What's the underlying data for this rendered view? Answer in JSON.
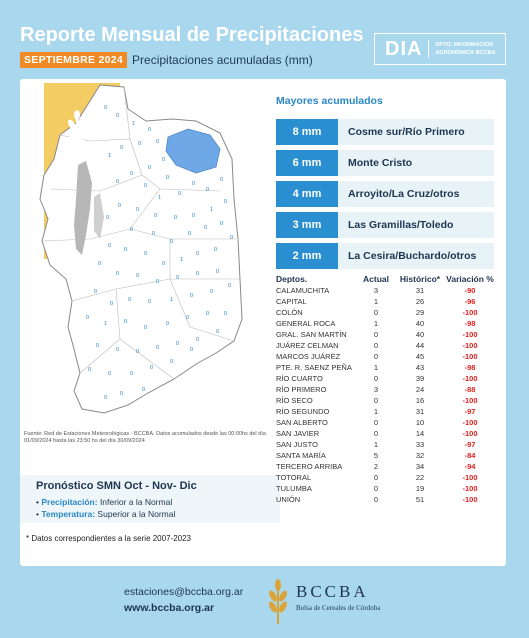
{
  "header": {
    "title": "Reporte Mensual de Precipitaciones",
    "badge": "SEPTIEMBRE 2024",
    "subtitle": "Precipitaciones acumuladas (mm)",
    "dia_word": "DIA",
    "dia_line1": "DPTO. INFORMACIÓN",
    "dia_line2": "AGRONÓMICA BCCBA"
  },
  "map": {
    "source_note": "Fuente: Red de Estaciones Meteorológicas - BCCBA. Datos acumulados desde las 00:00hs del día 01/09/2024 hasta las 23:50 hs del día 30/09/2024",
    "station_labels": [
      "0",
      "0",
      "1",
      "0",
      "0",
      "0",
      "0",
      "1",
      "0",
      "0",
      "0",
      "0",
      "0",
      "0",
      "1",
      "0",
      "0",
      "0",
      "0",
      "0",
      "1",
      "0",
      "0",
      "0",
      "0",
      "0",
      "0",
      "0",
      "0",
      "0",
      "0",
      "0",
      "0",
      "0",
      "0",
      "0",
      "1",
      "0",
      "0",
      "0",
      "0",
      "0",
      "0",
      "0",
      "0",
      "0",
      "0",
      "0",
      "0",
      "0",
      "0",
      "1",
      "0",
      "0",
      "0",
      "0",
      "0",
      "1",
      "0",
      "0",
      "0",
      "0",
      "0",
      "0",
      "0",
      "0",
      "0",
      "0",
      "0",
      "0",
      "0",
      "0",
      "0",
      "0",
      "0",
      "0",
      "0",
      "0",
      "0",
      "0"
    ]
  },
  "forecast": {
    "title": "Pronóstico SMN Oct - Nov- Dic",
    "precip_label": "Precipitación:",
    "precip_value": "Inferior a la Normal",
    "temp_label": "Temperatura:",
    "temp_value": "Superior a la Normal"
  },
  "footnote": "* Datos correspondientes a la serie 2007-2023",
  "top": {
    "title": "Mayores acumulados",
    "items": [
      {
        "mm": "8 mm",
        "place": "Cosme sur/Río Primero"
      },
      {
        "mm": "6 mm",
        "place": "Monte Cristo"
      },
      {
        "mm": "4 mm",
        "place": "Arroyito/La Cruz/otros"
      },
      {
        "mm": "3 mm",
        "place": "Las Gramillas/Toledo"
      },
      {
        "mm": "2 mm",
        "place": "La Cesira/Buchardo/otros"
      }
    ]
  },
  "table": {
    "headers": [
      "Deptos.",
      "Actual",
      "Histórico*",
      "Variación %"
    ],
    "rows": [
      [
        "CALAMUCHITA",
        "3",
        "31",
        "-90"
      ],
      [
        "CAPITAL",
        "1",
        "26",
        "-96"
      ],
      [
        "COLÓN",
        "0",
        "29",
        "-100"
      ],
      [
        "GENERAL ROCA",
        "1",
        "40",
        "-98"
      ],
      [
        "GRAL. SAN MARTÍN",
        "0",
        "40",
        "-100"
      ],
      [
        "JUÁREZ CELMAN",
        "0",
        "44",
        "-100"
      ],
      [
        "MARCOS JUÁREZ",
        "0",
        "45",
        "-100"
      ],
      [
        "PTE. R. SAENZ PEÑA",
        "1",
        "43",
        "-98"
      ],
      [
        "RÍO CUARTO",
        "0",
        "39",
        "-100"
      ],
      [
        "RÍO PRIMERO",
        "3",
        "24",
        "-88"
      ],
      [
        "RÍO SECO",
        "0",
        "16",
        "-100"
      ],
      [
        "RÍO SEGUNDO",
        "1",
        "31",
        "-97"
      ],
      [
        "SAN ALBERTO",
        "0",
        "10",
        "-100"
      ],
      [
        "SAN JAVIER",
        "0",
        "14",
        "-100"
      ],
      [
        "SAN JUSTO",
        "1",
        "33",
        "-97"
      ],
      [
        "SANTA MARÍA",
        "5",
        "32",
        "-84"
      ],
      [
        "TERCERO ARRIBA",
        "2",
        "34",
        "-94"
      ],
      [
        "TOTORAL",
        "0",
        "22",
        "-100"
      ],
      [
        "TULUMBA",
        "0",
        "19",
        "-100"
      ],
      [
        "UNIÓN",
        "0",
        "51",
        "-100"
      ]
    ]
  },
  "footer": {
    "email": "estaciones@bccba.org.ar",
    "web": "www.bccba.org.ar",
    "logo": "BCCBA",
    "logo_sub": "Bolsa de Cereales de Córdoba"
  }
}
